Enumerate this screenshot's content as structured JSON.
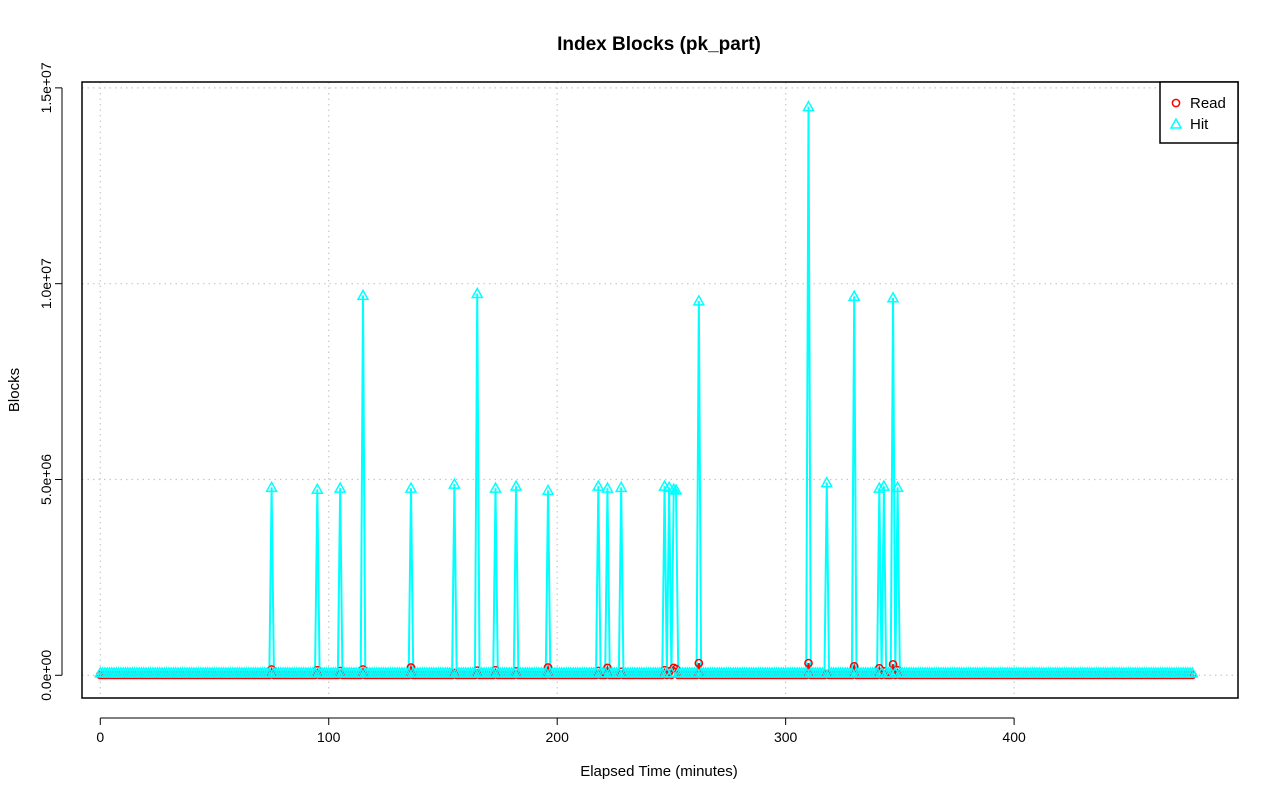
{
  "chart_data": {
    "type": "line",
    "title": "Index Blocks (pk_part)",
    "xlabel": "Elapsed Time (minutes)",
    "ylabel": "Blocks",
    "xlim": [
      -8,
      498
    ],
    "ylim": [
      -580000,
      15150000
    ],
    "x_ticks": [
      0,
      100,
      200,
      300,
      400
    ],
    "x_tick_labels": [
      "0",
      "100",
      "200",
      "300",
      "400"
    ],
    "y_ticks": [
      0,
      5000000,
      10000000,
      15000000
    ],
    "y_tick_labels": [
      "0.0e+00",
      "5.0e+06",
      "1.0e+07",
      "1.5e+07"
    ],
    "grid": true,
    "legend_position": "top-right",
    "x_range": [
      0,
      478
    ],
    "x_step": 1,
    "baseline": {
      "Read": 10000,
      "Hit": 60000
    },
    "series": [
      {
        "name": "Read",
        "color": "#ff0000",
        "marker": "circle",
        "spikes": [
          [
            75,
            150000
          ],
          [
            95,
            130000
          ],
          [
            105,
            110000
          ],
          [
            115,
            150000
          ],
          [
            136,
            200000
          ],
          [
            155,
            60000
          ],
          [
            165,
            120000
          ],
          [
            173,
            130000
          ],
          [
            182,
            100000
          ],
          [
            196,
            200000
          ],
          [
            218,
            110000
          ],
          [
            222,
            190000
          ],
          [
            228,
            90000
          ],
          [
            247,
            130000
          ],
          [
            249,
            100000
          ],
          [
            251,
            190000
          ],
          [
            252,
            160000
          ],
          [
            262,
            310000
          ],
          [
            310,
            310000
          ],
          [
            318,
            30000
          ],
          [
            330,
            230000
          ],
          [
            341,
            180000
          ],
          [
            343,
            100000
          ],
          [
            347,
            280000
          ],
          [
            349,
            130000
          ]
        ]
      },
      {
        "name": "Hit",
        "color": "#00ffff",
        "marker": "triangle",
        "spikes": [
          [
            75,
            4800000
          ],
          [
            95,
            4750000
          ],
          [
            105,
            4780000
          ],
          [
            115,
            9700000
          ],
          [
            136,
            4780000
          ],
          [
            155,
            4880000
          ],
          [
            165,
            9750000
          ],
          [
            173,
            4780000
          ],
          [
            182,
            4830000
          ],
          [
            196,
            4720000
          ],
          [
            218,
            4830000
          ],
          [
            222,
            4780000
          ],
          [
            228,
            4800000
          ],
          [
            247,
            4830000
          ],
          [
            249,
            4800000
          ],
          [
            251,
            4750000
          ],
          [
            252,
            4730000
          ],
          [
            262,
            9560000
          ],
          [
            310,
            14520000
          ],
          [
            318,
            4920000
          ],
          [
            330,
            9680000
          ],
          [
            341,
            4780000
          ],
          [
            343,
            4830000
          ],
          [
            347,
            9640000
          ],
          [
            349,
            4800000
          ]
        ]
      }
    ]
  }
}
